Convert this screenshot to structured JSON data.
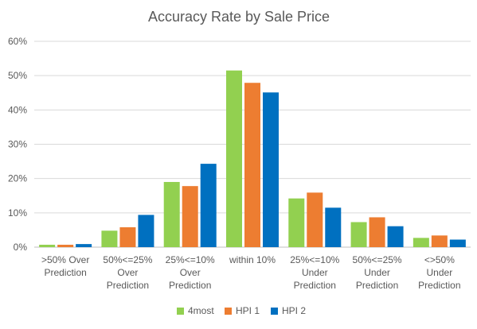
{
  "chart_data": {
    "type": "bar",
    "title": "Accuracy Rate by Sale Price",
    "xlabel": "",
    "ylabel": "",
    "ylim": [
      0,
      60
    ],
    "yticks": [
      "0%",
      "10%",
      "20%",
      "30%",
      "40%",
      "50%",
      "60%"
    ],
    "grid": true,
    "legend_position": "bottom",
    "categories": [
      [
        ">50% Over",
        "Prediction"
      ],
      [
        "50%<=25%",
        "Over",
        "Prediction"
      ],
      [
        "25%<=10%",
        "Over",
        "Prediction"
      ],
      [
        "within 10%"
      ],
      [
        "25%<=10%",
        "Under",
        "Prediction"
      ],
      [
        "50%<=25%",
        "Under",
        "Prediction"
      ],
      [
        "<>50%",
        "Under",
        "Prediction"
      ]
    ],
    "series": [
      {
        "name": "4most",
        "color": "#92D050",
        "values": [
          0.7,
          4.8,
          19.0,
          51.5,
          14.2,
          7.3,
          2.7
        ]
      },
      {
        "name": "HPI 1",
        "color": "#ED7D31",
        "values": [
          0.7,
          5.8,
          17.8,
          47.9,
          15.9,
          8.7,
          3.4
        ]
      },
      {
        "name": "HPI 2",
        "color": "#0070C0",
        "values": [
          0.9,
          9.4,
          24.3,
          45.1,
          11.5,
          6.1,
          2.2
        ]
      }
    ]
  }
}
